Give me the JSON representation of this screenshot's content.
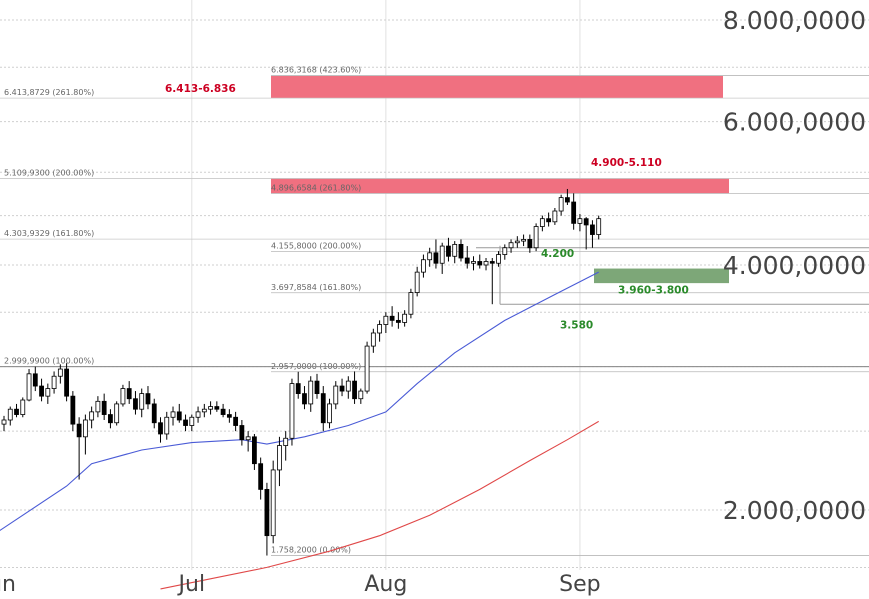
{
  "chart_data": {
    "type": "candlestick",
    "y_scale": "log",
    "y_axis": {
      "ticks": [
        {
          "value": 8,
          "label": "8.000,0000"
        },
        {
          "value": 6,
          "label": "6.000,0000"
        },
        {
          "value": 4,
          "label": "4.000,0000"
        },
        {
          "value": 2,
          "label": "2.000,0000"
        }
      ],
      "range": [
        1.6,
        9.0
      ]
    },
    "x_axis": {
      "ticks": [
        {
          "day": 0,
          "label": "Jun"
        },
        {
          "day": 30,
          "label": "Jul"
        },
        {
          "day": 61,
          "label": "Aug"
        },
        {
          "day": 92,
          "label": "Sep"
        }
      ],
      "range": [
        0,
        148
      ]
    },
    "fib_levels_left": [
      {
        "value": 6.4138729,
        "label": "6.413,8729 (261.80%)"
      },
      {
        "value": 5.10993,
        "label": "5.109,9300 (200.00%)"
      },
      {
        "value": 4.3039329,
        "label": "4.303,9329 (161.80%)"
      },
      {
        "value": 2.99999,
        "label": "2.999,9900 (100.00%)"
      }
    ],
    "fib_levels_mid": [
      {
        "value": 6.8363168,
        "label": "6.836,3168 (423.60%)"
      },
      {
        "value": 4.8966584,
        "label": "4.896,6584 (261.80%)"
      },
      {
        "value": 4.1558,
        "label": "4.155,8000 (200.00%)"
      },
      {
        "value": 3.6978584,
        "label": "3.697,8584 (161.80%)"
      },
      {
        "value": 2.957,
        "label": "2.957,0000 (100.00%)"
      },
      {
        "value": 1.7582,
        "label": "1.758,2000 (0.00%)"
      }
    ],
    "zones": [
      {
        "label": "6.413-6.836",
        "low": 6.413,
        "high": 6.836,
        "color": "#f07080",
        "kind": "resistance"
      },
      {
        "label": "4.900-5.110",
        "low": 4.9,
        "high": 5.11,
        "color": "#f07080",
        "kind": "resistance"
      },
      {
        "label": "3.960-3.800",
        "low": 3.8,
        "high": 3.96,
        "color": "#7da778",
        "kind": "support"
      }
    ],
    "level_labels": [
      {
        "label": "4.200",
        "value": 4.2
      },
      {
        "label": "3.580",
        "value": 3.58
      }
    ],
    "candles": [
      {
        "day": 0,
        "o": 2.55,
        "h": 2.61,
        "l": 2.5,
        "c": 2.58
      },
      {
        "day": 1,
        "o": 2.58,
        "h": 2.68,
        "l": 2.54,
        "c": 2.66
      },
      {
        "day": 2,
        "o": 2.66,
        "h": 2.7,
        "l": 2.6,
        "c": 2.62
      },
      {
        "day": 3,
        "o": 2.62,
        "h": 2.75,
        "l": 2.6,
        "c": 2.73
      },
      {
        "day": 4,
        "o": 2.73,
        "h": 2.98,
        "l": 2.72,
        "c": 2.94
      },
      {
        "day": 5,
        "o": 2.94,
        "h": 3.0,
        "l": 2.8,
        "c": 2.84
      },
      {
        "day": 6,
        "o": 2.84,
        "h": 2.9,
        "l": 2.72,
        "c": 2.76
      },
      {
        "day": 7,
        "o": 2.76,
        "h": 2.86,
        "l": 2.7,
        "c": 2.82
      },
      {
        "day": 8,
        "o": 2.82,
        "h": 2.96,
        "l": 2.78,
        "c": 2.92
      },
      {
        "day": 9,
        "o": 2.92,
        "h": 3.02,
        "l": 2.86,
        "c": 2.98
      },
      {
        "day": 10,
        "o": 2.98,
        "h": 3.03,
        "l": 2.72,
        "c": 2.76
      },
      {
        "day": 11,
        "o": 2.76,
        "h": 2.8,
        "l": 2.5,
        "c": 2.55
      },
      {
        "day": 12,
        "o": 2.55,
        "h": 2.6,
        "l": 2.18,
        "c": 2.46
      },
      {
        "day": 13,
        "o": 2.46,
        "h": 2.62,
        "l": 2.34,
        "c": 2.58
      },
      {
        "day": 14,
        "o": 2.58,
        "h": 2.68,
        "l": 2.52,
        "c": 2.64
      },
      {
        "day": 15,
        "o": 2.64,
        "h": 2.76,
        "l": 2.6,
        "c": 2.72
      },
      {
        "day": 16,
        "o": 2.72,
        "h": 2.78,
        "l": 2.58,
        "c": 2.62
      },
      {
        "day": 17,
        "o": 2.62,
        "h": 2.66,
        "l": 2.52,
        "c": 2.56
      },
      {
        "day": 18,
        "o": 2.56,
        "h": 2.72,
        "l": 2.54,
        "c": 2.7
      },
      {
        "day": 19,
        "o": 2.7,
        "h": 2.85,
        "l": 2.68,
        "c": 2.82
      },
      {
        "day": 20,
        "o": 2.82,
        "h": 2.88,
        "l": 2.7,
        "c": 2.74
      },
      {
        "day": 21,
        "o": 2.74,
        "h": 2.8,
        "l": 2.62,
        "c": 2.66
      },
      {
        "day": 22,
        "o": 2.66,
        "h": 2.82,
        "l": 2.6,
        "c": 2.78
      },
      {
        "day": 23,
        "o": 2.78,
        "h": 2.84,
        "l": 2.66,
        "c": 2.7
      },
      {
        "day": 24,
        "o": 2.7,
        "h": 2.74,
        "l": 2.52,
        "c": 2.56
      },
      {
        "day": 25,
        "o": 2.56,
        "h": 2.6,
        "l": 2.42,
        "c": 2.48
      },
      {
        "day": 26,
        "o": 2.48,
        "h": 2.64,
        "l": 2.44,
        "c": 2.6
      },
      {
        "day": 27,
        "o": 2.6,
        "h": 2.68,
        "l": 2.54,
        "c": 2.64
      },
      {
        "day": 28,
        "o": 2.64,
        "h": 2.7,
        "l": 2.56,
        "c": 2.58
      },
      {
        "day": 29,
        "o": 2.58,
        "h": 2.62,
        "l": 2.5,
        "c": 2.54
      },
      {
        "day": 30,
        "o": 2.54,
        "h": 2.62,
        "l": 2.5,
        "c": 2.6
      },
      {
        "day": 31,
        "o": 2.6,
        "h": 2.68,
        "l": 2.56,
        "c": 2.64
      },
      {
        "day": 32,
        "o": 2.64,
        "h": 2.7,
        "l": 2.6,
        "c": 2.66
      },
      {
        "day": 33,
        "o": 2.66,
        "h": 2.72,
        "l": 2.62,
        "c": 2.68
      },
      {
        "day": 34,
        "o": 2.68,
        "h": 2.72,
        "l": 2.64,
        "c": 2.66
      },
      {
        "day": 35,
        "o": 2.66,
        "h": 2.7,
        "l": 2.6,
        "c": 2.62
      },
      {
        "day": 36,
        "o": 2.62,
        "h": 2.66,
        "l": 2.56,
        "c": 2.6
      },
      {
        "day": 37,
        "o": 2.6,
        "h": 2.64,
        "l": 2.5,
        "c": 2.54
      },
      {
        "day": 38,
        "o": 2.54,
        "h": 2.58,
        "l": 2.4,
        "c": 2.44
      },
      {
        "day": 39,
        "o": 2.44,
        "h": 2.5,
        "l": 2.36,
        "c": 2.46
      },
      {
        "day": 40,
        "o": 2.46,
        "h": 2.48,
        "l": 2.24,
        "c": 2.28
      },
      {
        "day": 41,
        "o": 2.28,
        "h": 2.32,
        "l": 2.06,
        "c": 2.12
      },
      {
        "day": 42,
        "o": 2.12,
        "h": 2.16,
        "l": 1.7582,
        "c": 1.86
      },
      {
        "day": 43,
        "o": 1.86,
        "h": 2.3,
        "l": 1.82,
        "c": 2.24
      },
      {
        "day": 44,
        "o": 2.24,
        "h": 2.46,
        "l": 2.14,
        "c": 2.4
      },
      {
        "day": 45,
        "o": 2.4,
        "h": 2.5,
        "l": 2.3,
        "c": 2.45
      },
      {
        "day": 46,
        "o": 2.45,
        "h": 2.9,
        "l": 2.4,
        "c": 2.86
      },
      {
        "day": 47,
        "o": 2.86,
        "h": 2.957,
        "l": 2.74,
        "c": 2.78
      },
      {
        "day": 48,
        "o": 2.78,
        "h": 2.84,
        "l": 2.66,
        "c": 2.7
      },
      {
        "day": 49,
        "o": 2.7,
        "h": 2.92,
        "l": 2.64,
        "c": 2.88
      },
      {
        "day": 50,
        "o": 2.88,
        "h": 2.94,
        "l": 2.74,
        "c": 2.78
      },
      {
        "day": 51,
        "o": 2.78,
        "h": 2.84,
        "l": 2.5,
        "c": 2.56
      },
      {
        "day": 52,
        "o": 2.56,
        "h": 2.74,
        "l": 2.52,
        "c": 2.7
      },
      {
        "day": 53,
        "o": 2.7,
        "h": 2.88,
        "l": 2.66,
        "c": 2.84
      },
      {
        "day": 54,
        "o": 2.84,
        "h": 2.9,
        "l": 2.76,
        "c": 2.8
      },
      {
        "day": 55,
        "o": 2.8,
        "h": 2.92,
        "l": 2.74,
        "c": 2.88
      },
      {
        "day": 56,
        "o": 2.88,
        "h": 2.96,
        "l": 2.7,
        "c": 2.74
      },
      {
        "day": 57,
        "o": 2.74,
        "h": 2.82,
        "l": 2.7,
        "c": 2.8
      },
      {
        "day": 58,
        "o": 2.8,
        "h": 3.22,
        "l": 2.78,
        "c": 3.18
      },
      {
        "day": 59,
        "o": 3.18,
        "h": 3.34,
        "l": 3.12,
        "c": 3.3
      },
      {
        "day": 60,
        "o": 3.3,
        "h": 3.42,
        "l": 3.22,
        "c": 3.38
      },
      {
        "day": 61,
        "o": 3.38,
        "h": 3.5,
        "l": 3.3,
        "c": 3.46
      },
      {
        "day": 62,
        "o": 3.46,
        "h": 3.56,
        "l": 3.36,
        "c": 3.42
      },
      {
        "day": 63,
        "o": 3.42,
        "h": 3.5,
        "l": 3.34,
        "c": 3.4
      },
      {
        "day": 64,
        "o": 3.4,
        "h": 3.52,
        "l": 3.36,
        "c": 3.48
      },
      {
        "day": 65,
        "o": 3.48,
        "h": 3.74,
        "l": 3.44,
        "c": 3.7
      },
      {
        "day": 66,
        "o": 3.7,
        "h": 3.98,
        "l": 3.66,
        "c": 3.92
      },
      {
        "day": 67,
        "o": 3.92,
        "h": 4.12,
        "l": 3.86,
        "c": 4.06
      },
      {
        "day": 68,
        "o": 4.06,
        "h": 4.2,
        "l": 3.98,
        "c": 4.14
      },
      {
        "day": 69,
        "o": 4.14,
        "h": 4.3,
        "l": 3.96,
        "c": 4.02
      },
      {
        "day": 70,
        "o": 4.02,
        "h": 4.26,
        "l": 3.9,
        "c": 4.22
      },
      {
        "day": 71,
        "o": 4.22,
        "h": 4.32,
        "l": 4.04,
        "c": 4.1
      },
      {
        "day": 72,
        "o": 4.1,
        "h": 4.28,
        "l": 4.02,
        "c": 4.24
      },
      {
        "day": 73,
        "o": 4.24,
        "h": 4.3,
        "l": 4.04,
        "c": 4.08
      },
      {
        "day": 74,
        "o": 4.08,
        "h": 4.22,
        "l": 3.96,
        "c": 4.02
      },
      {
        "day": 75,
        "o": 4.02,
        "h": 4.1,
        "l": 3.94,
        "c": 4.04
      },
      {
        "day": 76,
        "o": 4.04,
        "h": 4.12,
        "l": 3.96,
        "c": 4.0
      },
      {
        "day": 77,
        "o": 4.0,
        "h": 4.08,
        "l": 3.94,
        "c": 4.04
      },
      {
        "day": 78,
        "o": 4.04,
        "h": 4.08,
        "l": 3.58,
        "c": 4.02
      },
      {
        "day": 79,
        "o": 4.02,
        "h": 4.16,
        "l": 3.98,
        "c": 4.12
      },
      {
        "day": 80,
        "o": 4.12,
        "h": 4.24,
        "l": 4.06,
        "c": 4.2
      },
      {
        "day": 81,
        "o": 4.2,
        "h": 4.3,
        "l": 4.14,
        "c": 4.26
      },
      {
        "day": 82,
        "o": 4.26,
        "h": 4.34,
        "l": 4.2,
        "c": 4.28
      },
      {
        "day": 83,
        "o": 4.28,
        "h": 4.36,
        "l": 4.22,
        "c": 4.3
      },
      {
        "day": 84,
        "o": 4.3,
        "h": 4.36,
        "l": 4.14,
        "c": 4.2
      },
      {
        "day": 85,
        "o": 4.2,
        "h": 4.5,
        "l": 4.16,
        "c": 4.46
      },
      {
        "day": 86,
        "o": 4.46,
        "h": 4.6,
        "l": 4.4,
        "c": 4.56
      },
      {
        "day": 87,
        "o": 4.56,
        "h": 4.64,
        "l": 4.46,
        "c": 4.52
      },
      {
        "day": 88,
        "o": 4.52,
        "h": 4.7,
        "l": 4.48,
        "c": 4.66
      },
      {
        "day": 89,
        "o": 4.66,
        "h": 4.88,
        "l": 4.6,
        "c": 4.84
      },
      {
        "day": 90,
        "o": 4.84,
        "h": 4.96,
        "l": 4.74,
        "c": 4.78
      },
      {
        "day": 91,
        "o": 4.78,
        "h": 4.9,
        "l": 4.42,
        "c": 4.5
      },
      {
        "day": 92,
        "o": 4.5,
        "h": 4.62,
        "l": 4.4,
        "c": 4.56
      },
      {
        "day": 93,
        "o": 4.56,
        "h": 4.58,
        "l": 4.18,
        "c": 4.48
      },
      {
        "day": 94,
        "o": 4.48,
        "h": 4.54,
        "l": 4.2,
        "c": 4.36
      },
      {
        "day": 95,
        "o": 4.36,
        "h": 4.6,
        "l": 4.3,
        "c": 4.56
      }
    ],
    "ma_blue": [
      {
        "day": -1,
        "v": 1.88
      },
      {
        "day": 10,
        "v": 2.14
      },
      {
        "day": 14,
        "v": 2.28
      },
      {
        "day": 22,
        "v": 2.37
      },
      {
        "day": 30,
        "v": 2.42
      },
      {
        "day": 38,
        "v": 2.44
      },
      {
        "day": 42,
        "v": 2.41
      },
      {
        "day": 48,
        "v": 2.46
      },
      {
        "day": 55,
        "v": 2.54
      },
      {
        "day": 61,
        "v": 2.64
      },
      {
        "day": 66,
        "v": 2.86
      },
      {
        "day": 72,
        "v": 3.12
      },
      {
        "day": 80,
        "v": 3.42
      },
      {
        "day": 88,
        "v": 3.68
      },
      {
        "day": 95,
        "v": 3.92
      }
    ],
    "ma_red": [
      {
        "day": 25,
        "v": 1.6
      },
      {
        "day": 32,
        "v": 1.64
      },
      {
        "day": 42,
        "v": 1.7
      },
      {
        "day": 52,
        "v": 1.78
      },
      {
        "day": 60,
        "v": 1.86
      },
      {
        "day": 68,
        "v": 1.97
      },
      {
        "day": 76,
        "v": 2.12
      },
      {
        "day": 84,
        "v": 2.3
      },
      {
        "day": 90,
        "v": 2.44
      },
      {
        "day": 95,
        "v": 2.57
      }
    ],
    "colors": {
      "up": "#ffffff",
      "down": "#000000",
      "wick": "#000000",
      "ma_blue": "#4a5bd6",
      "ma_red": "#e04848",
      "zone_red": "#f07080",
      "zone_green": "#7da778"
    }
  }
}
